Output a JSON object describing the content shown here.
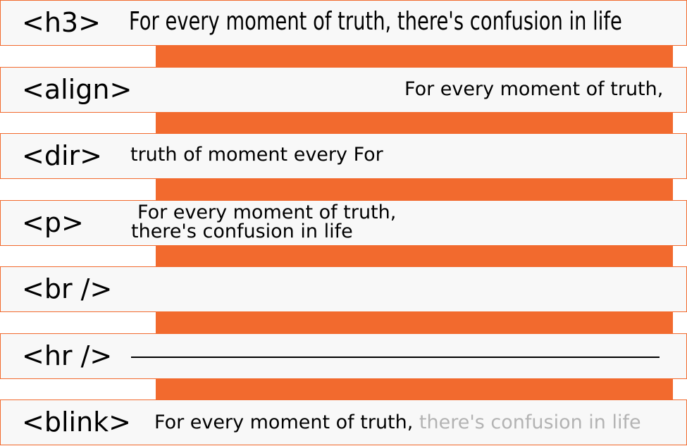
{
  "rows": [
    {
      "tag": "<h3>",
      "sample": "For every moment of truth, there's confusion in life"
    },
    {
      "tag": "<align>",
      "sample": "For every moment of truth,"
    },
    {
      "tag": "<dir>",
      "sample": "truth of moment every For"
    },
    {
      "tag": "<p>",
      "line1": "For every moment of truth,",
      "line2": "there's confusion in life"
    },
    {
      "tag": "<br />"
    },
    {
      "tag": "<hr />"
    },
    {
      "tag": "<blink>",
      "visible": "For every moment of truth, ",
      "faded": "there's confusion in life"
    }
  ],
  "colors": {
    "accent": "#f26a2e",
    "row_background": "#f8f8f8",
    "text": "#000000",
    "faded_text": "#b3b3b3"
  }
}
